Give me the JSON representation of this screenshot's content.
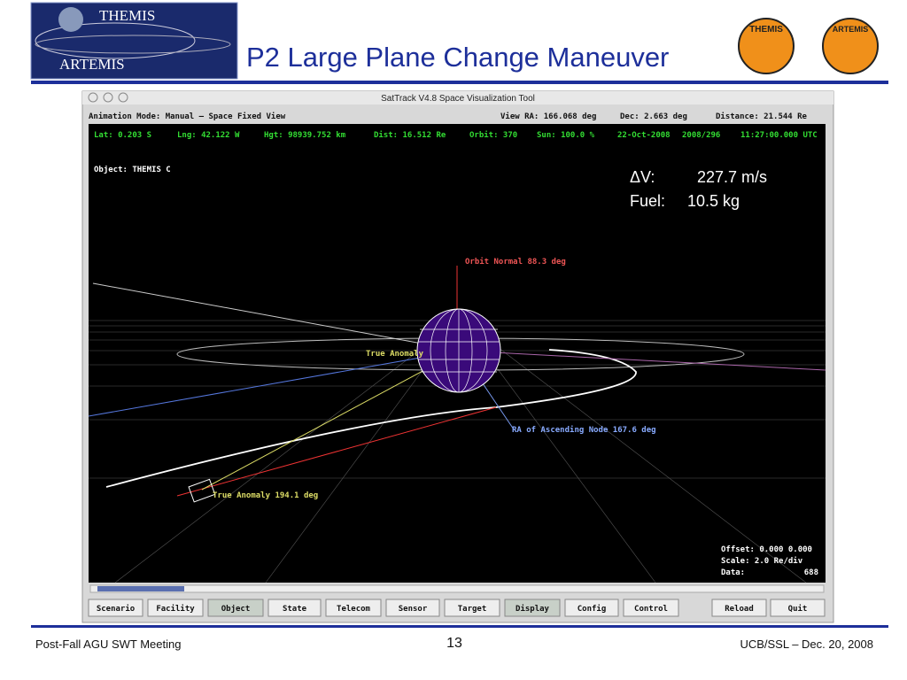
{
  "header": {
    "logo_text": [
      "THEMIS",
      "ARTEMIS"
    ],
    "title": "P2 Large Plane Change Maneuver",
    "badges": [
      "THEMIS",
      "ARTEMIS"
    ]
  },
  "window": {
    "title": "SatTrack V4.8  Space Visualization Tool",
    "status": {
      "mode": "Animation Mode: Manual – Space Fixed View",
      "view_ra": "View RA: 166.068 deg",
      "dec": "Dec:   2.663 deg",
      "distance": "Distance:   21.544 Re"
    },
    "info": [
      "Lat:  0.203 S",
      "Lng:  42.122 W",
      "Hgt:  98939.752 km",
      "Dist:  16.512 Re",
      "Orbit: 370",
      "Sun: 100.0 %",
      "22-Oct-2008",
      "2008/296",
      "11:27:00.000 UTC"
    ],
    "object": "Object: THEMIS C",
    "overlay": {
      "dv_label": "ΔV:",
      "dv_value": "227.7 m/s",
      "fuel_label": "Fuel:",
      "fuel_value": "10.5 kg"
    },
    "scene_labels": {
      "orbit_normal": "Orbit Normal 88.3 deg",
      "true_anomaly_center": "True Anomaly",
      "raan": "RA of Ascending Node 167.6 deg",
      "true_anomaly": "True Anomaly 194.1 deg"
    },
    "scale": {
      "offset": "Offset: 0.000 0.000",
      "scale": "Scale:   2.0 Re/div",
      "data_label": "Data:",
      "data_value": "688"
    },
    "buttons": [
      "Scenario",
      "Facility",
      "Object",
      "State",
      "Telecom",
      "Sensor",
      "Target",
      "Display",
      "Config",
      "Control",
      "Reload",
      "Quit"
    ]
  },
  "footer": {
    "left": "Post-Fall AGU SWT Meeting",
    "page": "13",
    "right": "UCB/SSL – Dec. 20, 2008"
  }
}
